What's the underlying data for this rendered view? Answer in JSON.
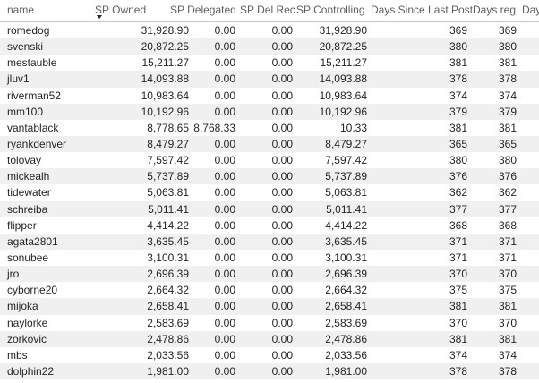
{
  "columns": {
    "name": "name",
    "sp_owned": "SP Owned",
    "sp_delegated": "SP Delegated",
    "sp_del_rec": "SP Del Rec",
    "sp_controlling": "SP Controlling",
    "days_since_last_post": "Days Since Last Post",
    "days_reg": "Days reg",
    "day_cut": "Day"
  },
  "sort": {
    "column": "SP Owned",
    "direction": "descending"
  },
  "rows": [
    {
      "name": "romedog",
      "sp_owned": "31,928.90",
      "sp_delegated": "0.00",
      "sp_del_rec": "0.00",
      "sp_controlling": "31,928.90",
      "days_since_last_post": "369",
      "days_reg": "369"
    },
    {
      "name": "svenski",
      "sp_owned": "20,872.25",
      "sp_delegated": "0.00",
      "sp_del_rec": "0.00",
      "sp_controlling": "20,872.25",
      "days_since_last_post": "380",
      "days_reg": "380"
    },
    {
      "name": "mestauble",
      "sp_owned": "15,211.27",
      "sp_delegated": "0.00",
      "sp_del_rec": "0.00",
      "sp_controlling": "15,211.27",
      "days_since_last_post": "381",
      "days_reg": "381"
    },
    {
      "name": "jluv1",
      "sp_owned": "14,093.88",
      "sp_delegated": "0.00",
      "sp_del_rec": "0.00",
      "sp_controlling": "14,093.88",
      "days_since_last_post": "378",
      "days_reg": "378"
    },
    {
      "name": "riverman52",
      "sp_owned": "10,983.64",
      "sp_delegated": "0.00",
      "sp_del_rec": "0.00",
      "sp_controlling": "10,983.64",
      "days_since_last_post": "374",
      "days_reg": "374"
    },
    {
      "name": "mm100",
      "sp_owned": "10,192.96",
      "sp_delegated": "0.00",
      "sp_del_rec": "0.00",
      "sp_controlling": "10,192.96",
      "days_since_last_post": "379",
      "days_reg": "379"
    },
    {
      "name": "vantablack",
      "sp_owned": "8,778.65",
      "sp_delegated": "8,768.33",
      "sp_del_rec": "0.00",
      "sp_controlling": "10.33",
      "days_since_last_post": "381",
      "days_reg": "381"
    },
    {
      "name": "ryankdenver",
      "sp_owned": "8,479.27",
      "sp_delegated": "0.00",
      "sp_del_rec": "0.00",
      "sp_controlling": "8,479.27",
      "days_since_last_post": "365",
      "days_reg": "365"
    },
    {
      "name": "tolovay",
      "sp_owned": "7,597.42",
      "sp_delegated": "0.00",
      "sp_del_rec": "0.00",
      "sp_controlling": "7,597.42",
      "days_since_last_post": "380",
      "days_reg": "380"
    },
    {
      "name": "mickealh",
      "sp_owned": "5,737.89",
      "sp_delegated": "0.00",
      "sp_del_rec": "0.00",
      "sp_controlling": "5,737.89",
      "days_since_last_post": "376",
      "days_reg": "376"
    },
    {
      "name": "tidewater",
      "sp_owned": "5,063.81",
      "sp_delegated": "0.00",
      "sp_del_rec": "0.00",
      "sp_controlling": "5,063.81",
      "days_since_last_post": "362",
      "days_reg": "362"
    },
    {
      "name": "schreiba",
      "sp_owned": "5,011.41",
      "sp_delegated": "0.00",
      "sp_del_rec": "0.00",
      "sp_controlling": "5,011.41",
      "days_since_last_post": "377",
      "days_reg": "377"
    },
    {
      "name": "flipper",
      "sp_owned": "4,414.22",
      "sp_delegated": "0.00",
      "sp_del_rec": "0.00",
      "sp_controlling": "4,414.22",
      "days_since_last_post": "368",
      "days_reg": "368"
    },
    {
      "name": "agata2801",
      "sp_owned": "3,635.45",
      "sp_delegated": "0.00",
      "sp_del_rec": "0.00",
      "sp_controlling": "3,635.45",
      "days_since_last_post": "371",
      "days_reg": "371"
    },
    {
      "name": "sonubee",
      "sp_owned": "3,100.31",
      "sp_delegated": "0.00",
      "sp_del_rec": "0.00",
      "sp_controlling": "3,100.31",
      "days_since_last_post": "371",
      "days_reg": "371"
    },
    {
      "name": "jro",
      "sp_owned": "2,696.39",
      "sp_delegated": "0.00",
      "sp_del_rec": "0.00",
      "sp_controlling": "2,696.39",
      "days_since_last_post": "370",
      "days_reg": "370"
    },
    {
      "name": "cyborne20",
      "sp_owned": "2,664.32",
      "sp_delegated": "0.00",
      "sp_del_rec": "0.00",
      "sp_controlling": "2,664.32",
      "days_since_last_post": "375",
      "days_reg": "375"
    },
    {
      "name": "mijoka",
      "sp_owned": "2,658.41",
      "sp_delegated": "0.00",
      "sp_del_rec": "0.00",
      "sp_controlling": "2,658.41",
      "days_since_last_post": "381",
      "days_reg": "381"
    },
    {
      "name": "naylorke",
      "sp_owned": "2,583.69",
      "sp_delegated": "0.00",
      "sp_del_rec": "0.00",
      "sp_controlling": "2,583.69",
      "days_since_last_post": "370",
      "days_reg": "370"
    },
    {
      "name": "zorkovic",
      "sp_owned": "2,478.86",
      "sp_delegated": "0.00",
      "sp_del_rec": "0.00",
      "sp_controlling": "2,478.86",
      "days_since_last_post": "381",
      "days_reg": "381"
    },
    {
      "name": "mbs",
      "sp_owned": "2,033.56",
      "sp_delegated": "0.00",
      "sp_del_rec": "0.00",
      "sp_controlling": "2,033.56",
      "days_since_last_post": "374",
      "days_reg": "374"
    },
    {
      "name": "dolphin22",
      "sp_owned": "1,981.00",
      "sp_delegated": "0.00",
      "sp_del_rec": "0.00",
      "sp_controlling": "1,981.00",
      "days_since_last_post": "378",
      "days_reg": "378"
    }
  ],
  "colors": {
    "header_text": "#605e5c",
    "body_text": "#252423",
    "alt_row": "#f0f0f0",
    "header_border": "#c8c8c8"
  },
  "icons": {
    "sort": "sort-descending-icon"
  }
}
